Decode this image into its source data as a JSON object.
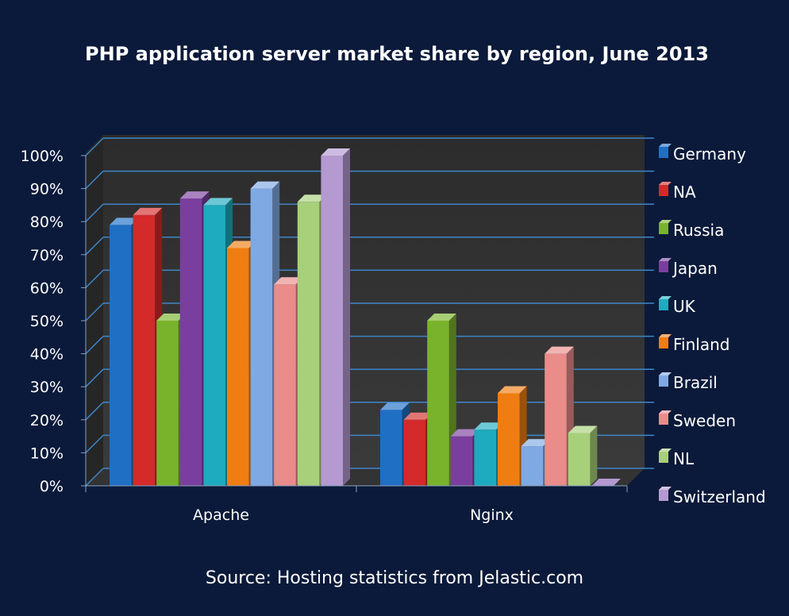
{
  "chart_data": {
    "type": "bar",
    "title": "PHP application server market share by region, June 2013",
    "source": "Source: Hosting statistics from Jelastic.com",
    "categories": [
      "Apache",
      "Nginx"
    ],
    "y_ticks": [
      "0%",
      "10%",
      "20%",
      "30%",
      "40%",
      "50%",
      "60%",
      "70%",
      "80%",
      "90%",
      "100%"
    ],
    "ylim": [
      0,
      100
    ],
    "grid": true,
    "legend_position": "right",
    "series": [
      {
        "name": "Germany",
        "color": "#1f6fc4",
        "values": [
          79,
          23
        ]
      },
      {
        "name": "NA",
        "color": "#d42a2a",
        "values": [
          82,
          20
        ]
      },
      {
        "name": "Russia",
        "color": "#79b32b",
        "values": [
          50,
          50
        ]
      },
      {
        "name": "Japan",
        "color": "#7a3f9e",
        "values": [
          87,
          15
        ]
      },
      {
        "name": "UK",
        "color": "#1eaabf",
        "values": [
          85,
          17
        ]
      },
      {
        "name": "Finland",
        "color": "#f07d11",
        "values": [
          72,
          28
        ]
      },
      {
        "name": "Brazil",
        "color": "#7fa9e3",
        "values": [
          90,
          12
        ]
      },
      {
        "name": "Sweden",
        "color": "#e98c8a",
        "values": [
          61,
          40
        ]
      },
      {
        "name": "NL",
        "color": "#a8cf7a",
        "values": [
          86,
          16
        ]
      },
      {
        "name": "Switzerland",
        "color": "#b49ad0",
        "values": [
          100,
          0
        ]
      }
    ]
  }
}
